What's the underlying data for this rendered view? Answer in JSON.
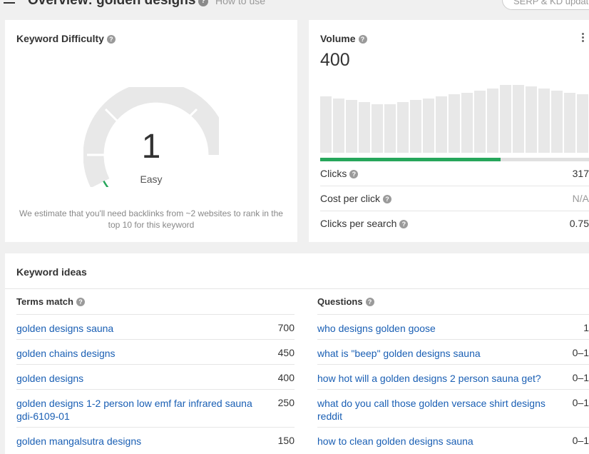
{
  "header": {
    "title": "Overview: golden designs",
    "how_to_use": "How to use",
    "serp_button": "SERP & KD updat"
  },
  "keyword_difficulty": {
    "title": "Keyword Difficulty",
    "value": "1",
    "label": "Easy",
    "note": "We estimate that you'll need backlinks from ~2 websites to rank in the top 10 for this keyword",
    "score_percent": 1,
    "indicator_color": "#26a65b"
  },
  "volume": {
    "title": "Volume",
    "value": "400",
    "clicks_share_percent": 67,
    "history_levels": [
      0.82,
      0.79,
      0.77,
      0.74,
      0.71,
      0.71,
      0.74,
      0.77,
      0.79,
      0.82,
      0.85,
      0.88,
      0.91,
      0.94,
      0.99,
      0.99,
      0.97,
      0.94,
      0.91,
      0.88,
      0.85,
      0.82
    ],
    "rows": [
      {
        "label": "Clicks",
        "value": "317",
        "help": true
      },
      {
        "label": "Cost per click",
        "value": "N/A",
        "help": true
      },
      {
        "label": "Clicks per search",
        "value": "0.75",
        "help": true
      }
    ]
  },
  "keyword_ideas": {
    "title": "Keyword ideas",
    "terms_match": {
      "heading": "Terms match",
      "items": [
        {
          "term": "golden designs sauna",
          "volume": "700"
        },
        {
          "term": "golden chains designs",
          "volume": "450"
        },
        {
          "term": "golden designs",
          "volume": "400"
        },
        {
          "term": "golden designs 1-2 person low emf far infrared sauna gdi-6109-01",
          "volume": "250"
        },
        {
          "term": "golden mangalsutra designs",
          "volume": "150"
        }
      ]
    },
    "questions": {
      "heading": "Questions",
      "items": [
        {
          "term": "who designs golden goose",
          "volume": "1"
        },
        {
          "term": "what is \"beep\" golden designs sauna",
          "volume": "0–1"
        },
        {
          "term": "how hot will a golden designs 2 person sauna get?",
          "volume": "0–1"
        },
        {
          "term": "what do you call those golden versace shirt designs reddit",
          "volume": "0–1"
        },
        {
          "term": "how to clean golden designs sauna",
          "volume": "0–1"
        }
      ]
    }
  }
}
